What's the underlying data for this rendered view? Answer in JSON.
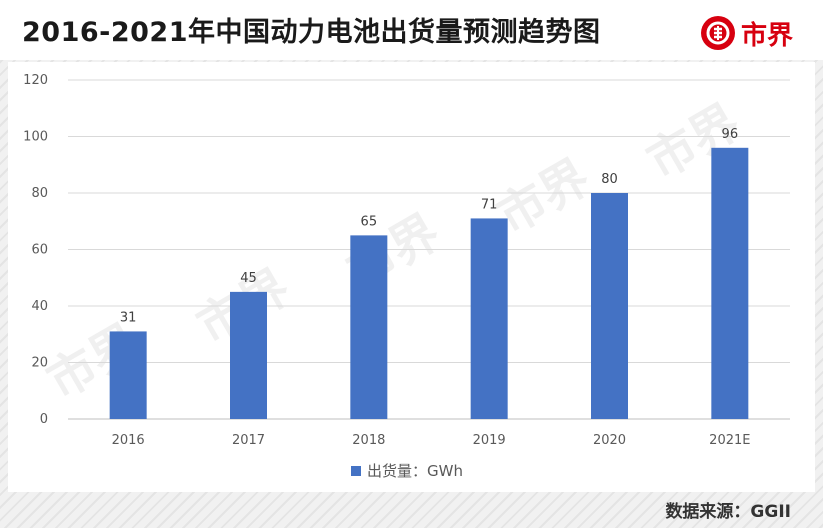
{
  "title": "2016-2021年中国动力电池出货量预测趋势图",
  "brand": {
    "name": "市界",
    "logo_icon": "shijie-logo-icon",
    "color": "#d7000f"
  },
  "source": "数据来源：GGII",
  "chart_data": {
    "type": "bar",
    "title": "2016-2021年中国动力电池出货量预测趋势图",
    "categories": [
      "2016",
      "2017",
      "2018",
      "2019",
      "2020",
      "2021E"
    ],
    "series": [
      {
        "name": "出货量：GWh",
        "values": [
          31,
          45,
          65,
          71,
          80,
          96
        ],
        "color": "#4472c4"
      }
    ],
    "data_labels": [
      "31",
      "45",
      "65",
      "71",
      "80",
      "96"
    ],
    "y_ticks": [
      "0",
      "20",
      "40",
      "60",
      "80",
      "100",
      "120"
    ],
    "ylim": [
      0,
      120
    ],
    "xlabel": "",
    "ylabel": "",
    "grid": true,
    "legend_position": "bottom"
  }
}
